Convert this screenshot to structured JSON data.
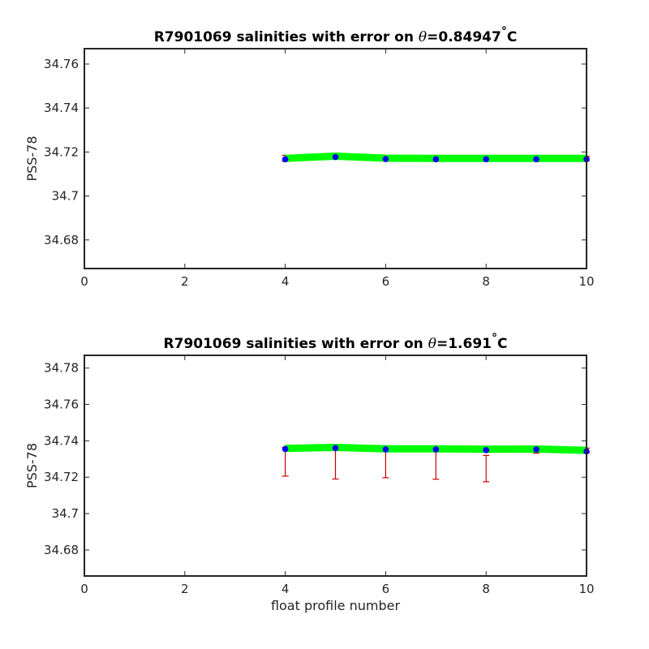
{
  "chart_data": [
    {
      "type": "line",
      "title_prefix": "R7901069 salinities with error on ",
      "title_symbol": "θ",
      "title_value": "=0.84947",
      "title_degree": "°",
      "title_unit": "C",
      "xlabel": "",
      "ylabel": "PSS-78",
      "xlim": [
        0,
        10
      ],
      "ylim": [
        34.667,
        34.767
      ],
      "xticks": [
        0,
        2,
        4,
        6,
        8,
        10
      ],
      "xtick_labels": [
        "0",
        "2",
        "4",
        "6",
        "8",
        "10"
      ],
      "yticks": [
        34.68,
        34.7,
        34.72,
        34.74,
        34.76
      ],
      "ytick_labels": [
        "34.68",
        "34.7",
        "34.72",
        "34.74",
        "34.76"
      ],
      "grid": false,
      "colors": {
        "line": "#00ff00",
        "points": "#0000ff",
        "errorbars": "#cc0000"
      },
      "x": [
        4,
        5,
        6,
        7,
        8,
        9,
        10
      ],
      "line_values": [
        34.7171,
        34.7181,
        34.7172,
        34.7171,
        34.7171,
        34.7171,
        34.7171
      ],
      "point_values": [
        34.7167,
        34.7177,
        34.7168,
        34.7167,
        34.7167,
        34.7167,
        34.7167
      ],
      "error_low": [
        34.7157,
        34.7172,
        34.7163,
        34.7162,
        34.7162,
        34.7162,
        34.716
      ],
      "error_high": [
        34.7185,
        34.7183,
        34.7172,
        34.7172,
        34.7172,
        34.7172,
        34.718
      ]
    },
    {
      "type": "line",
      "title_prefix": "R7901069 salinities with error on ",
      "title_symbol": "θ",
      "title_value": "=1.691",
      "title_degree": "°",
      "title_unit": "C",
      "xlabel": "float profile number",
      "ylabel": "PSS-78",
      "xlim": [
        0,
        10
      ],
      "ylim": [
        34.6657,
        34.787
      ],
      "xticks": [
        0,
        2,
        4,
        6,
        8,
        10
      ],
      "xtick_labels": [
        "0",
        "2",
        "4",
        "6",
        "8",
        "10"
      ],
      "yticks": [
        34.68,
        34.7,
        34.72,
        34.74,
        34.76,
        34.78
      ],
      "ytick_labels": [
        "34.68",
        "34.7",
        "34.72",
        "34.74",
        "34.76",
        "34.78"
      ],
      "grid": false,
      "colors": {
        "line": "#00ff00",
        "points": "#0000ff",
        "errorbars": "#cc0000"
      },
      "x": [
        4,
        5,
        6,
        7,
        8,
        9,
        10
      ],
      "line_values": [
        34.7358,
        34.7364,
        34.7356,
        34.7356,
        34.7354,
        34.7355,
        34.7348
      ],
      "point_values": [
        34.7355,
        34.736,
        34.7353,
        34.7353,
        34.7349,
        34.7353,
        34.7342
      ],
      "error_low": [
        34.7206,
        34.719,
        34.7197,
        34.7189,
        34.7175,
        34.7332,
        34.7335
      ],
      "error_high": [
        34.7365,
        34.7365,
        34.736,
        34.7355,
        34.732,
        34.7365,
        34.736
      ]
    }
  ]
}
